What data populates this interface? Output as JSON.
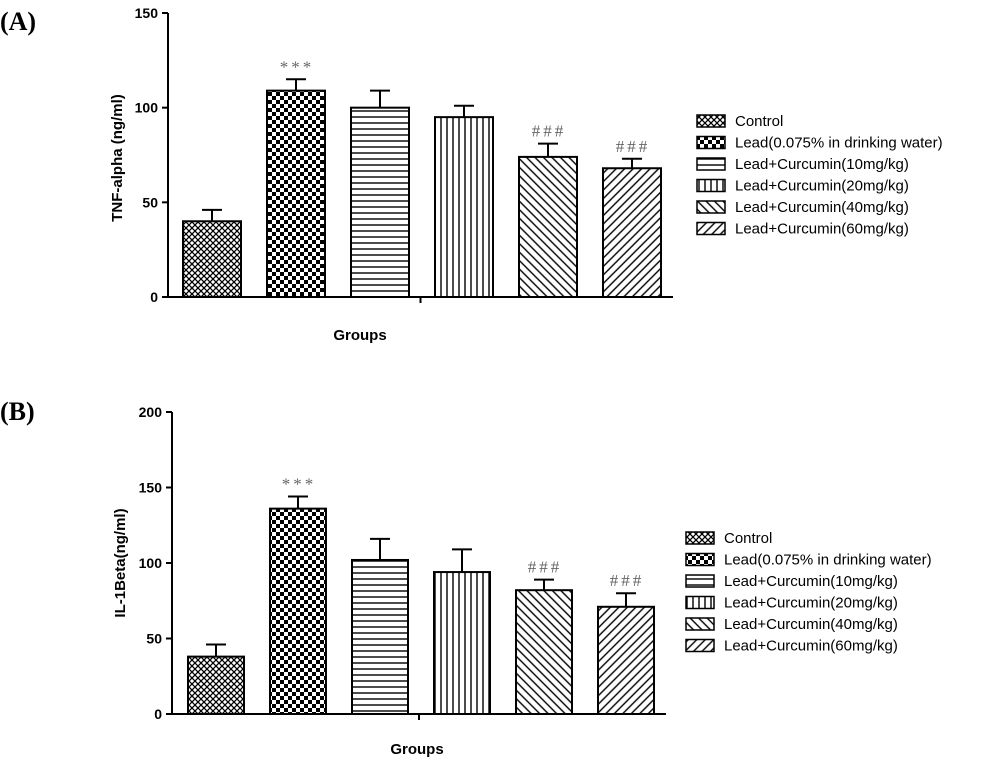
{
  "chart_data": [
    {
      "type": "bar",
      "panel_label": "(A)",
      "categories": [
        "Control",
        "Lead(0.075% in drinking water)",
        "Lead+Curcumin(10mg/kg)",
        "Lead+Curcumin(20mg/kg)",
        "Lead+Curcumin(40mg/kg)",
        "Lead+Curcumin(60mg/kg)"
      ],
      "values": [
        40,
        109,
        100,
        95,
        74,
        68
      ],
      "errors": [
        6,
        6,
        9,
        6,
        7,
        5
      ],
      "annotations": [
        "",
        "***",
        "",
        "",
        "###",
        "###"
      ],
      "xlabel": "Groups",
      "ylabel": "TNF-alpha (ng/ml)",
      "ylim": [
        0,
        150
      ],
      "yticks": [
        0,
        50,
        100,
        150
      ],
      "legend": [
        "Control",
        "Lead(0.075% in drinking water)",
        "Lead+Curcumin(10mg/kg)",
        "Lead+Curcumin(20mg/kg)",
        "Lead+Curcumin(40mg/kg)",
        "Lead+Curcumin(60mg/kg)"
      ],
      "legend_position": "right",
      "grid": false
    },
    {
      "type": "bar",
      "panel_label": "(B)",
      "categories": [
        "Control",
        "Lead(0.075% in drinking water)",
        "Lead+Curcumin(10mg/kg)",
        "Lead+Curcumin(20mg/kg)",
        "Lead+Curcumin(40mg/kg)",
        "Lead+Curcumin(60mg/kg)"
      ],
      "values": [
        38,
        136,
        102,
        94,
        82,
        71
      ],
      "errors": [
        8,
        8,
        14,
        15,
        7,
        9
      ],
      "annotations": [
        "",
        "***",
        "",
        "",
        "###",
        "###"
      ],
      "xlabel": "Groups",
      "ylabel": "IL-1Beta(ng/ml)",
      "ylim": [
        0,
        200
      ],
      "yticks": [
        0,
        50,
        100,
        150,
        200
      ],
      "legend": [
        "Control",
        "Lead(0.075% in drinking water)",
        "Lead+Curcumin(10mg/kg)",
        "Lead+Curcumin(20mg/kg)",
        "Lead+Curcumin(40mg/kg)",
        "Lead+Curcumin(60mg/kg)"
      ],
      "legend_position": "right",
      "grid": false
    }
  ],
  "colors": {
    "bar_stroke": "#000000",
    "bar_fill": "#ffffff",
    "annotation": "#666666"
  }
}
